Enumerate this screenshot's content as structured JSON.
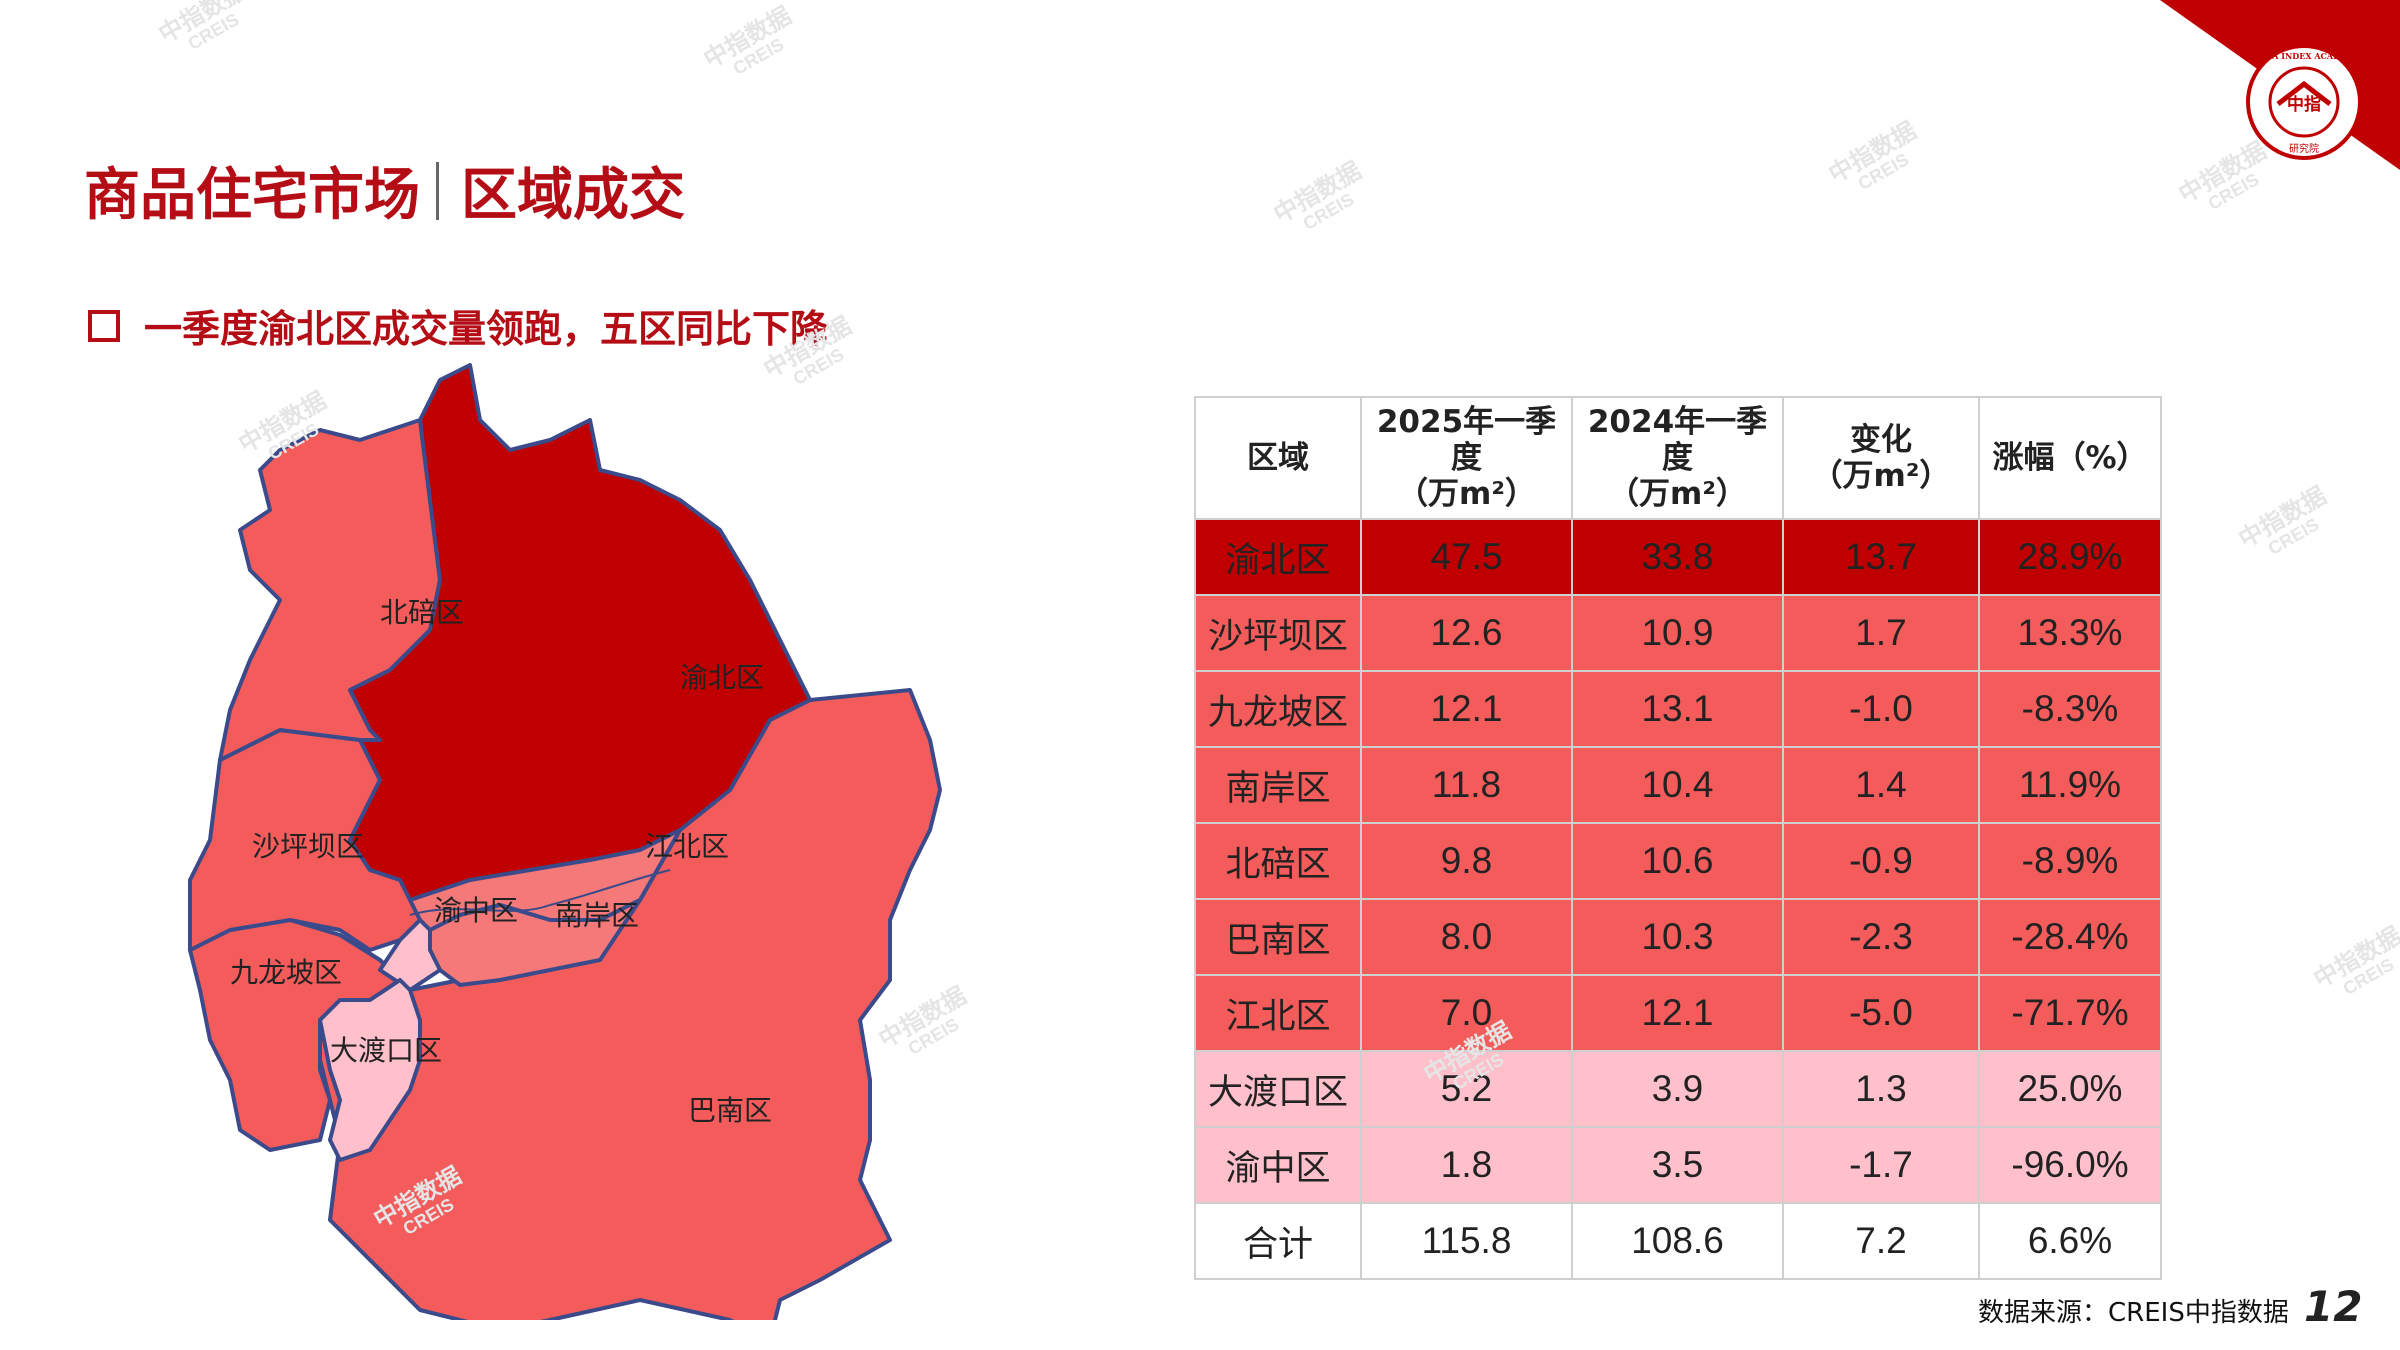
{
  "header": {
    "title_main": "商品住宅市场",
    "title_sub": "区域成交",
    "subtitle": "一季度渝北区成交量领跑，五区同比下降"
  },
  "logo": {
    "circle_text": "CHINA INDEX ACADEMY",
    "center_text": "中指",
    "bottom_text": "研究院"
  },
  "colors": {
    "accent": "#b50d16",
    "dark_red": "#c00000",
    "mid_red": "#f45c5c",
    "pink": "#ffc0cb",
    "border": "#3a4a8a"
  },
  "map": {
    "labels": {
      "beibei": "北碚区",
      "yubei": "渝北区",
      "shapingba": "沙坪坝区",
      "jiangbei": "江北区",
      "yuzhong": "渝中区",
      "nanan": "南岸区",
      "jiulongpo": "九龙坡区",
      "dadukou": "大渡口区",
      "banan": "巴南区"
    }
  },
  "table": {
    "headers": [
      "区域",
      "2025年一季度（万m²）",
      "2024年一季度（万m²）",
      "变化（万m²）",
      "涨幅（%）"
    ],
    "header_lines": [
      [
        "区域"
      ],
      [
        "2025年一季度",
        "（万m²）"
      ],
      [
        "2024年一季度",
        "（万m²）"
      ],
      [
        "变化",
        "（万m²）"
      ],
      [
        "涨幅（%）"
      ]
    ],
    "rows": [
      {
        "region": "渝北区",
        "q2025": "47.5",
        "q2024": "33.8",
        "change": "13.7",
        "growth": "28.9%",
        "tier": "dark"
      },
      {
        "region": "沙坪坝区",
        "q2025": "12.6",
        "q2024": "10.9",
        "change": "1.7",
        "growth": "13.3%",
        "tier": "mid"
      },
      {
        "region": "九龙坡区",
        "q2025": "12.1",
        "q2024": "13.1",
        "change": "-1.0",
        "growth": "-8.3%",
        "tier": "mid"
      },
      {
        "region": "南岸区",
        "q2025": "11.8",
        "q2024": "10.4",
        "change": "1.4",
        "growth": "11.9%",
        "tier": "mid"
      },
      {
        "region": "北碚区",
        "q2025": "9.8",
        "q2024": "10.6",
        "change": "-0.9",
        "growth": "-8.9%",
        "tier": "mid"
      },
      {
        "region": "巴南区",
        "q2025": "8.0",
        "q2024": "10.3",
        "change": "-2.3",
        "growth": "-28.4%",
        "tier": "mid"
      },
      {
        "region": "江北区",
        "q2025": "7.0",
        "q2024": "12.1",
        "change": "-5.0",
        "growth": "-71.7%",
        "tier": "mid"
      },
      {
        "region": "大渡口区",
        "q2025": "5.2",
        "q2024": "3.9",
        "change": "1.3",
        "growth": "25.0%",
        "tier": "pink"
      },
      {
        "region": "渝中区",
        "q2025": "1.8",
        "q2024": "3.5",
        "change": "-1.7",
        "growth": "-96.0%",
        "tier": "pink"
      },
      {
        "region": "合计",
        "q2025": "115.8",
        "q2024": "108.6",
        "change": "7.2",
        "growth": "6.6%",
        "tier": "total"
      }
    ]
  },
  "footer": {
    "source": "数据来源：CREIS中指数据",
    "page_number": "12"
  },
  "watermark": {
    "cn": "中指数据",
    "en": "CREIS"
  }
}
